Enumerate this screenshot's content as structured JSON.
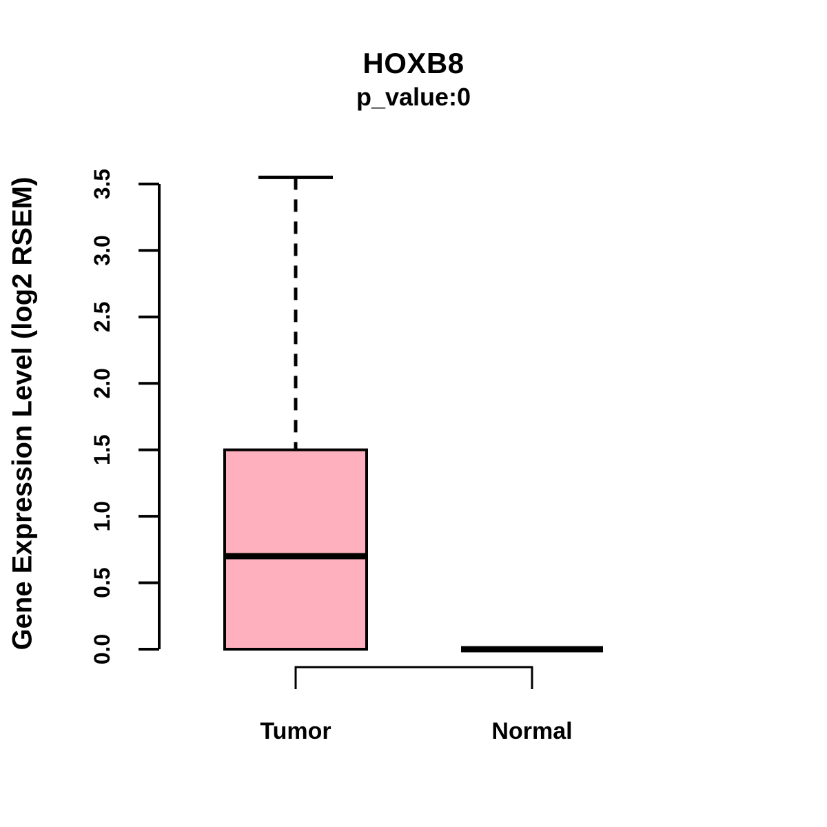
{
  "chart_data": {
    "type": "boxplot",
    "title": "HOXB8",
    "subtitle": "p_value:0",
    "ylabel": "Gene Expression Level (log2 RSEM)",
    "xlabel": "",
    "ylim": [
      0,
      3.55
    ],
    "yticks": [
      0.0,
      0.5,
      1.0,
      1.5,
      2.0,
      2.5,
      3.0,
      3.5
    ],
    "ytick_labels": [
      "0.0",
      "0.5",
      "1.0",
      "1.5",
      "2.0",
      "2.5",
      "3.0",
      "3.5"
    ],
    "categories": [
      "Tumor",
      "Normal"
    ],
    "series": [
      {
        "name": "Tumor",
        "lower_whisker": 0.0,
        "q1": 0.0,
        "median": 0.7,
        "q3": 1.5,
        "upper_whisker": 3.55,
        "fill": "#FFB0BE"
      },
      {
        "name": "Normal",
        "lower_whisker": 0.0,
        "q1": 0.0,
        "median": 0.0,
        "q3": 0.0,
        "upper_whisker": 0.0,
        "fill": "#FFB0BE"
      }
    ],
    "colors": {
      "box_fill": "#FFB0BE",
      "line": "#000000",
      "background": "#FFFFFF"
    },
    "grid": false,
    "legend_position": "none",
    "annotations": {
      "comparison_bracket": [
        "Tumor",
        "Normal"
      ],
      "whisker_style": "dashed"
    }
  }
}
